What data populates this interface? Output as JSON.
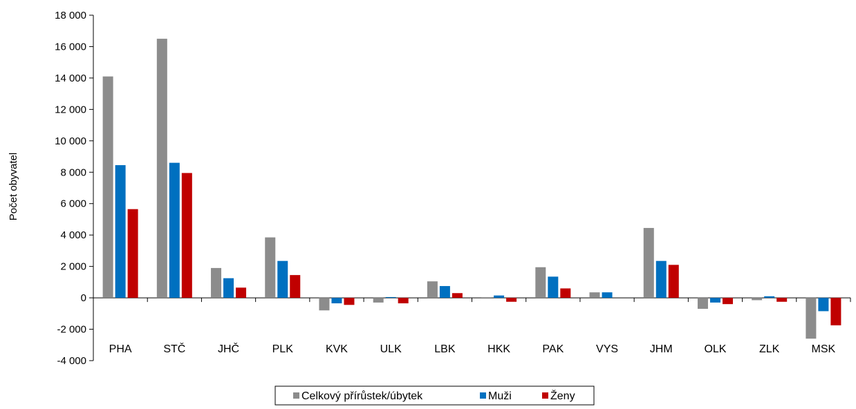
{
  "chart_data": {
    "type": "bar",
    "title": "",
    "xlabel": "",
    "ylabel": "Počet obyvatel",
    "ylim": [
      -4000,
      18000
    ],
    "ytick_values": [
      -4000,
      -2000,
      0,
      2000,
      4000,
      6000,
      8000,
      10000,
      12000,
      14000,
      16000,
      18000
    ],
    "ytick_labels": [
      "-4 000",
      "-2 000",
      "0",
      "2 000",
      "4 000",
      "6 000",
      "8 000",
      "10 000",
      "12 000",
      "14 000",
      "16 000",
      "18 000"
    ],
    "grid": false,
    "legend_position": "bottom",
    "categories": [
      "PHA",
      "STČ",
      "JHČ",
      "PLK",
      "KVK",
      "ULK",
      "LBK",
      "HKK",
      "PAK",
      "VYS",
      "JHM",
      "OLK",
      "ZLK",
      "MSK"
    ],
    "series": [
      {
        "name": "Celkový přírůstek/úbytek",
        "color": "#8c8c8c",
        "values": [
          14100,
          16500,
          1900,
          3850,
          -800,
          -300,
          1050,
          -50,
          1950,
          350,
          4450,
          -700,
          -150,
          -2600
        ]
      },
      {
        "name": "Muži",
        "color": "#0070c0",
        "values": [
          8450,
          8600,
          1250,
          2350,
          -350,
          50,
          750,
          150,
          1350,
          350,
          2350,
          -300,
          100,
          -850
        ]
      },
      {
        "name": "Ženy",
        "color": "#c00000",
        "values": [
          5650,
          7950,
          650,
          1450,
          -450,
          -350,
          300,
          -250,
          600,
          0,
          2100,
          -400,
          -250,
          -1750
        ]
      }
    ]
  }
}
